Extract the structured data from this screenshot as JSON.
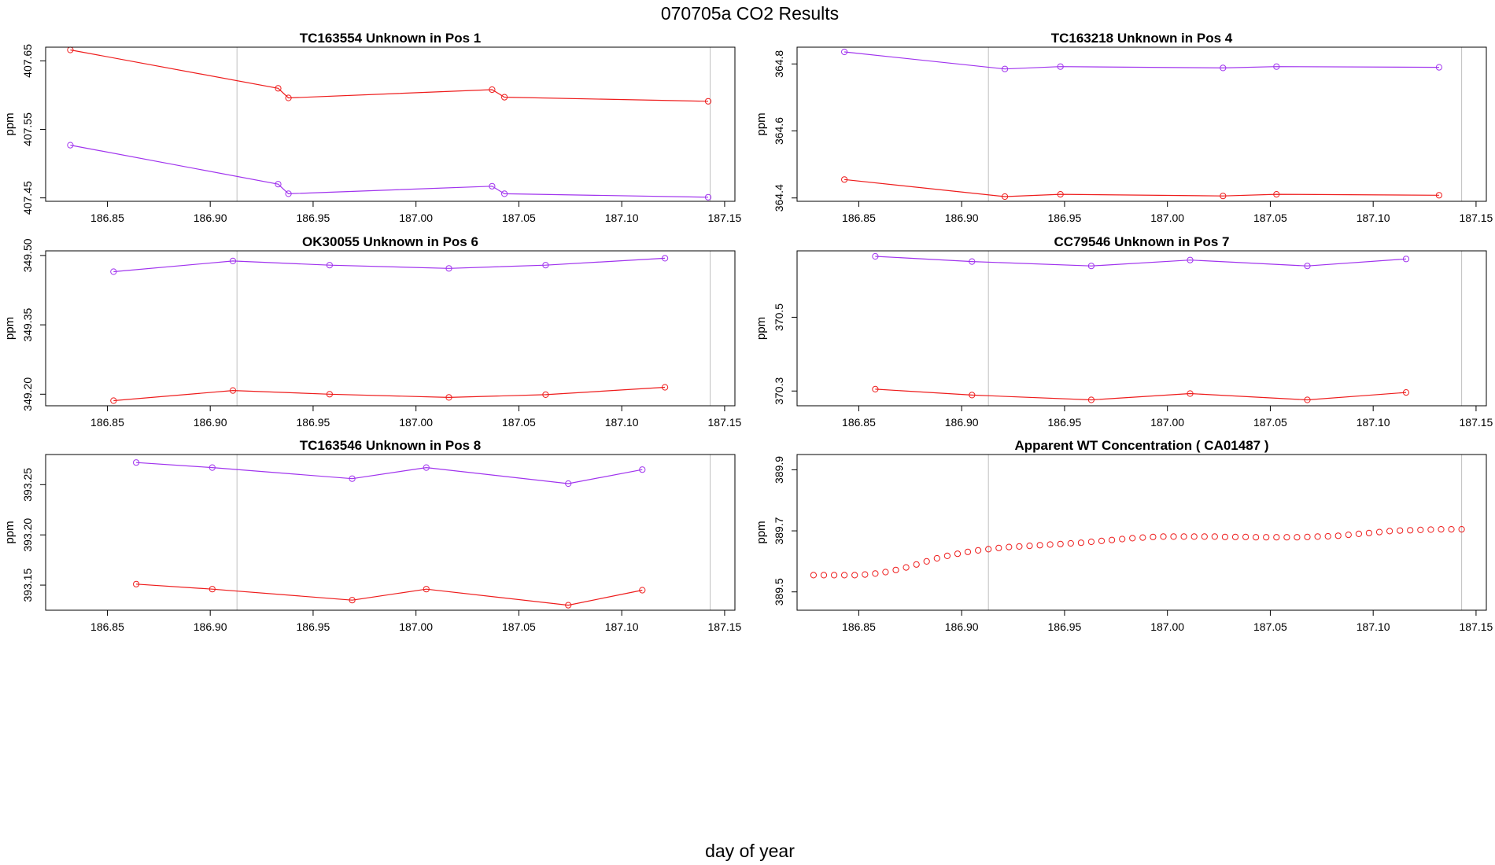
{
  "title": "070705a  CO2 Results",
  "xlabel": "day of year",
  "colors": {
    "series_a": "#ee1c1c",
    "series_b": "#a033ee",
    "vline": "#bfbfbf",
    "frame": "#000000"
  },
  "chart_data": [
    {
      "type": "line",
      "title": "TC163554    Unknown in Pos 1",
      "ylabel": "ppm",
      "xlim": [
        186.82,
        187.155
      ],
      "ylim": [
        407.445,
        407.67
      ],
      "xticks": [
        "186.85",
        "186.90",
        "186.95",
        "187.00",
        "187.05",
        "187.10",
        "187.15"
      ],
      "yticks": [
        "407.45",
        "407.55",
        "407.65"
      ],
      "vlines": [
        186.913,
        187.143
      ],
      "series": [
        {
          "name": "red",
          "color": "#ee1c1c",
          "x": [
            186.832,
            186.933,
            186.938,
            187.037,
            187.043,
            187.142
          ],
          "y": [
            407.666,
            407.61,
            407.596,
            407.608,
            407.597,
            407.591
          ]
        },
        {
          "name": "purple",
          "color": "#a033ee",
          "x": [
            186.832,
            186.933,
            186.938,
            187.037,
            187.043,
            187.142
          ],
          "y": [
            407.527,
            407.47,
            407.456,
            407.467,
            407.456,
            407.451
          ]
        }
      ]
    },
    {
      "type": "line",
      "title": "TC163218    Unknown in Pos 4",
      "ylabel": "ppm",
      "xlim": [
        186.82,
        187.155
      ],
      "ylim": [
        364.39,
        364.85
      ],
      "xticks": [
        "186.85",
        "186.90",
        "186.95",
        "187.00",
        "187.05",
        "187.10",
        "187.15"
      ],
      "yticks": [
        "364.4",
        "364.6",
        "364.8"
      ],
      "vlines": [
        186.913,
        187.143
      ],
      "series": [
        {
          "name": "purple",
          "color": "#a033ee",
          "x": [
            186.843,
            186.921,
            186.948,
            187.027,
            187.053,
            187.132
          ],
          "y": [
            364.836,
            364.785,
            364.792,
            364.788,
            364.792,
            364.79
          ]
        },
        {
          "name": "red",
          "color": "#ee1c1c",
          "x": [
            186.843,
            186.921,
            186.948,
            187.027,
            187.053,
            187.132
          ],
          "y": [
            364.455,
            364.404,
            364.411,
            364.406,
            364.411,
            364.408
          ]
        }
      ]
    },
    {
      "type": "line",
      "title": "OK30055    Unknown in Pos 6",
      "ylabel": "ppm",
      "xlim": [
        186.82,
        187.155
      ],
      "ylim": [
        349.175,
        349.51
      ],
      "xticks": [
        "186.85",
        "186.90",
        "186.95",
        "187.00",
        "187.05",
        "187.10",
        "187.15"
      ],
      "yticks": [
        "349.20",
        "349.35",
        "349.50"
      ],
      "vlines": [
        186.913,
        187.143
      ],
      "series": [
        {
          "name": "purple",
          "color": "#a033ee",
          "x": [
            186.853,
            186.911,
            186.958,
            187.016,
            187.063,
            187.121
          ],
          "y": [
            349.465,
            349.488,
            349.479,
            349.472,
            349.479,
            349.494
          ]
        },
        {
          "name": "red",
          "color": "#ee1c1c",
          "x": [
            186.853,
            186.911,
            186.958,
            187.016,
            187.063,
            187.121
          ],
          "y": [
            349.186,
            349.208,
            349.2,
            349.193,
            349.199,
            349.215
          ]
        }
      ]
    },
    {
      "type": "line",
      "title": "CC79546    Unknown in Pos 7",
      "ylabel": "ppm",
      "xlim": [
        186.82,
        187.155
      ],
      "ylim": [
        370.26,
        370.68
      ],
      "xticks": [
        "186.85",
        "186.90",
        "186.95",
        "187.00",
        "187.05",
        "187.10",
        "187.15"
      ],
      "yticks": [
        "370.3",
        "370.5"
      ],
      "vlines": [
        186.913,
        187.143
      ],
      "series": [
        {
          "name": "purple",
          "color": "#a033ee",
          "x": [
            186.858,
            186.905,
            186.963,
            187.011,
            187.068,
            187.116
          ],
          "y": [
            370.665,
            370.651,
            370.639,
            370.655,
            370.639,
            370.658
          ]
        },
        {
          "name": "red",
          "color": "#ee1c1c",
          "x": [
            186.858,
            186.905,
            186.963,
            187.011,
            187.068,
            187.116
          ],
          "y": [
            370.305,
            370.289,
            370.276,
            370.293,
            370.276,
            370.296
          ]
        }
      ]
    },
    {
      "type": "line",
      "title": "TC163546    Unknown in Pos 8",
      "ylabel": "ppm",
      "xlim": [
        186.82,
        187.155
      ],
      "ylim": [
        393.125,
        393.28
      ],
      "xticks": [
        "186.85",
        "186.90",
        "186.95",
        "187.00",
        "187.05",
        "187.10",
        "187.15"
      ],
      "yticks": [
        "393.15",
        "393.20",
        "393.25"
      ],
      "vlines": [
        186.913,
        187.143
      ],
      "series": [
        {
          "name": "purple",
          "color": "#a033ee",
          "x": [
            186.864,
            186.901,
            186.969,
            187.005,
            187.074,
            187.11
          ],
          "y": [
            393.272,
            393.267,
            393.256,
            393.267,
            393.251,
            393.265
          ]
        },
        {
          "name": "red",
          "color": "#ee1c1c",
          "x": [
            186.864,
            186.901,
            186.969,
            187.005,
            187.074,
            187.11
          ],
          "y": [
            393.151,
            393.146,
            393.135,
            393.146,
            393.13,
            393.145
          ]
        }
      ]
    },
    {
      "type": "scatter",
      "title": "Apparent WT Concentration ( CA01487 )",
      "ylabel": "ppm",
      "xlim": [
        186.82,
        187.155
      ],
      "ylim": [
        389.44,
        389.95
      ],
      "xticks": [
        "186.85",
        "186.90",
        "186.95",
        "187.00",
        "187.05",
        "187.10",
        "187.15"
      ],
      "yticks": [
        "389.5",
        "389.7",
        "389.9"
      ],
      "vlines": [
        186.913,
        187.143
      ],
      "series": [
        {
          "name": "red",
          "color": "#ee1c1c",
          "x": [
            186.828,
            186.833,
            186.838,
            186.843,
            186.848,
            186.853,
            186.858,
            186.863,
            186.868,
            186.873,
            186.878,
            186.883,
            186.888,
            186.893,
            186.898,
            186.903,
            186.908,
            186.913,
            186.918,
            186.923,
            186.928,
            186.933,
            186.938,
            186.943,
            186.948,
            186.953,
            186.958,
            186.963,
            186.968,
            186.973,
            186.978,
            186.983,
            186.988,
            186.993,
            186.998,
            187.003,
            187.008,
            187.013,
            187.018,
            187.023,
            187.028,
            187.033,
            187.038,
            187.043,
            187.048,
            187.053,
            187.058,
            187.063,
            187.068,
            187.073,
            187.078,
            187.083,
            187.088,
            187.093,
            187.098,
            187.103,
            187.108,
            187.113,
            187.118,
            187.123,
            187.128,
            187.133,
            187.138,
            187.143
          ],
          "y": [
            389.555,
            389.555,
            389.555,
            389.555,
            389.555,
            389.557,
            389.56,
            389.565,
            389.572,
            389.58,
            389.59,
            389.6,
            389.61,
            389.618,
            389.625,
            389.631,
            389.636,
            389.64,
            389.644,
            389.647,
            389.649,
            389.651,
            389.653,
            389.655,
            389.657,
            389.659,
            389.661,
            389.664,
            389.667,
            389.67,
            389.673,
            389.676,
            389.678,
            389.68,
            389.681,
            389.681,
            389.681,
            389.681,
            389.681,
            389.681,
            389.68,
            389.68,
            389.68,
            389.679,
            389.679,
            389.679,
            389.679,
            389.679,
            389.68,
            389.681,
            389.682,
            389.684,
            389.687,
            389.69,
            389.693,
            389.696,
            389.699,
            389.701,
            389.702,
            389.703,
            389.704,
            389.705,
            389.705,
            389.705
          ]
        }
      ]
    }
  ]
}
